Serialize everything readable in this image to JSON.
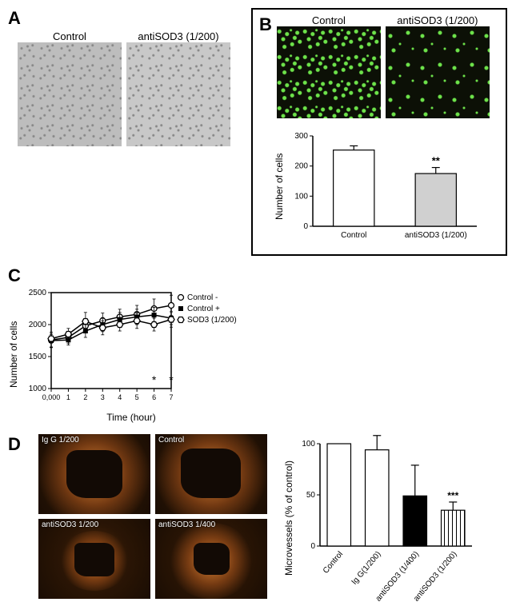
{
  "panelA": {
    "label": "A",
    "conditions": [
      "Control",
      "antiSOD3 (1/200)"
    ]
  },
  "panelB": {
    "label": "B",
    "conditions": [
      "Control",
      "antiSOD3 (1/200)"
    ],
    "bar_chart": {
      "type": "bar",
      "ylabel": "Number of cells",
      "ylim": [
        0,
        300
      ],
      "ytick_step": 100,
      "yticks": [
        0,
        100,
        200,
        300
      ],
      "categories": [
        "Control",
        "antiSOD3 (1/200)"
      ],
      "values": [
        253,
        175
      ],
      "errors": [
        14,
        20
      ],
      "bar_colors": [
        "#ffffff",
        "#d0d0d0"
      ],
      "bar_border": "#000000",
      "bar_width": 0.5,
      "significance": {
        "label": "**",
        "over_index": 1
      },
      "axis_color": "#000000",
      "label_fontsize": 12
    }
  },
  "panelC": {
    "label": "C",
    "line_chart": {
      "type": "line",
      "ylabel": "Number of cells",
      "xlabel": "Time  (hour)",
      "xlim": [
        0,
        7
      ],
      "ylim": [
        1000,
        2500
      ],
      "xticks": [
        "0,000",
        "1",
        "2",
        "3",
        "4",
        "5",
        "6",
        "7"
      ],
      "yticks": [
        1000,
        1500,
        2000,
        2500
      ],
      "series": [
        {
          "name": "Control -",
          "marker": "open-circle",
          "color": "#000000",
          "y": [
            1760,
            1800,
            1980,
            2060,
            2120,
            2160,
            2250,
            2300
          ],
          "err": [
            120,
            90,
            110,
            120,
            120,
            140,
            150,
            160
          ]
        },
        {
          "name": "Control +",
          "marker": "filled-square",
          "color": "#000000",
          "y": [
            1750,
            1760,
            1900,
            2000,
            2080,
            2120,
            2150,
            2100
          ],
          "err": [
            100,
            80,
            100,
            110,
            110,
            120,
            120,
            100
          ]
        },
        {
          "name": "SOD3 (1/200)",
          "marker": "open-hex",
          "color": "#000000",
          "y": [
            1780,
            1850,
            2050,
            1950,
            2000,
            2060,
            2000,
            2080
          ],
          "err": [
            70,
            90,
            140,
            110,
            100,
            120,
            100,
            120
          ]
        }
      ],
      "significance_marks": [
        {
          "x_index": 6,
          "label": "*"
        },
        {
          "x_index": 7,
          "label": "*"
        }
      ],
      "axis_color": "#000000",
      "line_width": 1.5,
      "label_fontsize": 12
    }
  },
  "panelD": {
    "label": "D",
    "images": [
      {
        "label": "Ig G 1/200",
        "halo_scale": 1.0
      },
      {
        "label": "Control",
        "halo_scale": 1.0
      },
      {
        "label": "antiSOD3 1/200",
        "halo_scale": 0.45
      },
      {
        "label": "antiSOD3 1/400",
        "halo_scale": 0.6
      }
    ],
    "bar_chart": {
      "type": "bar",
      "ylabel": "Microvessels (% of control)",
      "ylim": [
        0,
        100
      ],
      "yticks": [
        0,
        50,
        100
      ],
      "categories": [
        "Control",
        "Ig G(1/200)",
        "antiSOD3 (1/400)",
        "antiSOD3 (1/200)"
      ],
      "values": [
        100,
        94,
        49,
        35
      ],
      "errors": [
        0,
        14,
        30,
        8
      ],
      "bar_styles": [
        "white",
        "white",
        "black",
        "hatched"
      ],
      "bar_colors": [
        "#ffffff",
        "#ffffff",
        "#000000",
        "#ffffff"
      ],
      "bar_border": "#000000",
      "significance": {
        "label": "***",
        "over_index": 3
      },
      "axis_color": "#000000",
      "label_fontsize": 12
    }
  }
}
